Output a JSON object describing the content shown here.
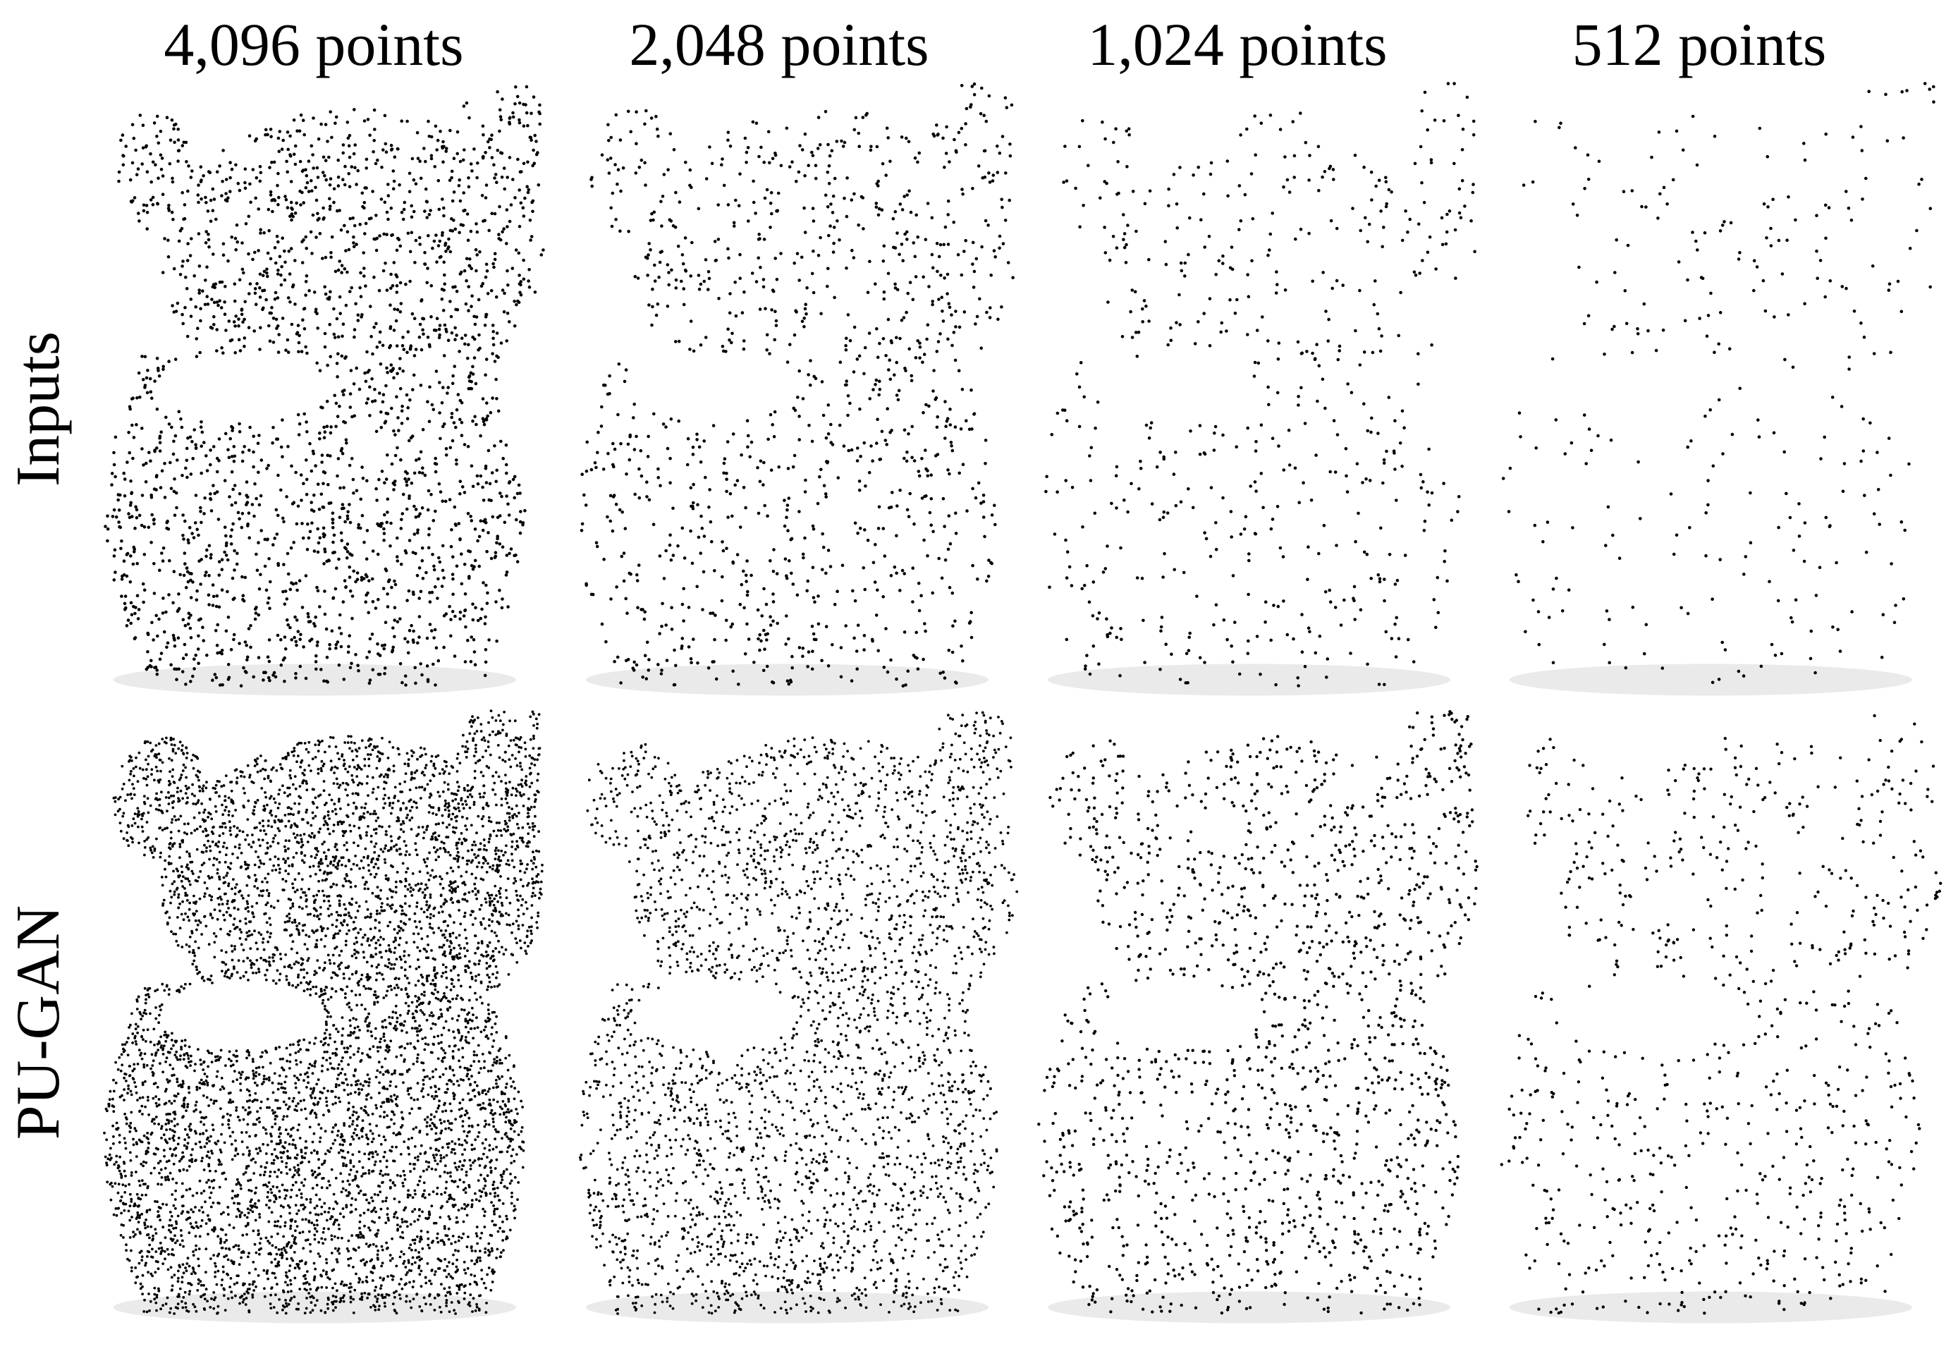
{
  "figure": {
    "column_headers": [
      "4,096 points",
      "2,048 points",
      "1,024 points",
      "512 points"
    ],
    "row_labels": [
      "Inputs",
      "PU-GAN"
    ],
    "panels": [
      {
        "name": "input-4096",
        "row": 0,
        "col": 0,
        "points": 4096
      },
      {
        "name": "input-2048",
        "row": 0,
        "col": 1,
        "points": 2048
      },
      {
        "name": "input-1024",
        "row": 0,
        "col": 2,
        "points": 1024
      },
      {
        "name": "input-512",
        "row": 0,
        "col": 3,
        "points": 512
      },
      {
        "name": "pugan-4096",
        "row": 1,
        "col": 0,
        "points": 4096
      },
      {
        "name": "pugan-2048",
        "row": 1,
        "col": 1,
        "points": 2048
      },
      {
        "name": "pugan-1024",
        "row": 1,
        "col": 2,
        "points": 1024
      },
      {
        "name": "pugan-512",
        "row": 1,
        "col": 3,
        "points": 512
      }
    ],
    "point_color": "#000000",
    "shadow_color": "#d9d9d9"
  }
}
